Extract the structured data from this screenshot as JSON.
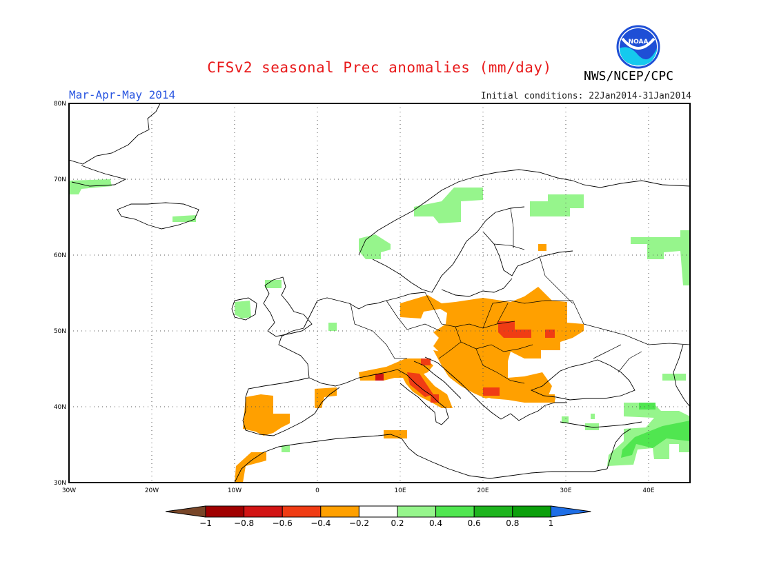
{
  "header": {
    "title": "CFSv2 seasonal Prec anomalies (mm/day)",
    "period": "Mar-Apr-May 2014",
    "initial_conditions": "Initial conditions: 22Jan2014-31Jan2014",
    "agency": "NWS/NCEP/CPC",
    "logo_text": "NOAA"
  },
  "map": {
    "lon_range": [
      -30,
      45
    ],
    "lat_range": [
      30,
      80
    ],
    "lat_ticks": [
      "30N",
      "40N",
      "50N",
      "60N",
      "70N",
      "80N"
    ],
    "lon_ticks": [
      "30W",
      "20W",
      "10W",
      "0",
      "10E",
      "20E",
      "30E",
      "40E"
    ],
    "grid_lines": "dotted",
    "anomalies": [
      {
        "region": "Central and Eastern Europe",
        "level": "-0.4 to -0.2",
        "color": "#ffa000"
      },
      {
        "region": "Southern Poland / Ukraine",
        "level": "-0.6 to -0.4",
        "color": "#f03c14"
      },
      {
        "region": "Italy / Adriatic",
        "level": "-0.6 to -0.4",
        "color": "#f03c14"
      },
      {
        "region": "Iberian Peninsula",
        "level": "-0.4 to -0.2",
        "color": "#ffa000"
      },
      {
        "region": "Scandinavia / Finland",
        "level": "0.2 to 0.4",
        "color": "#96f58c"
      },
      {
        "region": "Eastern Mediterranean / Middle East",
        "level": "0.2 to 0.6",
        "color": "#50e650"
      }
    ]
  },
  "colorbar": {
    "labels": [
      "-1",
      "-0.8",
      "-0.6",
      "-0.4",
      "-0.2",
      "0.2",
      "0.4",
      "0.6",
      "0.8",
      "1"
    ],
    "colors": [
      "#a00000",
      "#d21414",
      "#f03c14",
      "#ffa000",
      "#ffffff",
      "#96f58c",
      "#50e650",
      "#1eb41e",
      "#0ca00c"
    ],
    "low_end_color": "#784628",
    "high_end_color": "#1e6ee6"
  }
}
